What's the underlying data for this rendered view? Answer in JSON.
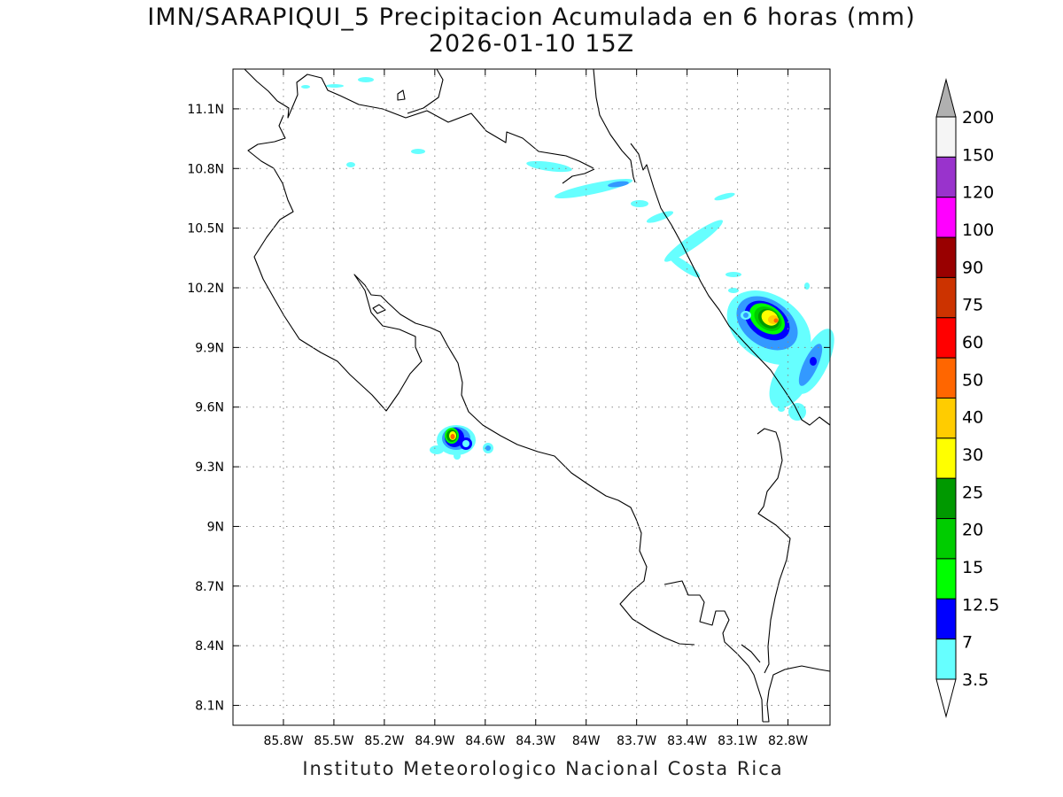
{
  "title": {
    "line1": "IMN/SARAPIQUI_5 Precipitacion Acumulada en 6 horas (mm)",
    "line2": "2026-01-10 15Z"
  },
  "footer": "Instituto Meteorologico Nacional Costa Rica",
  "map": {
    "lon_range": [
      -86.1,
      -82.55
    ],
    "lat_range": [
      8.0,
      11.3
    ],
    "lon_ticks": [
      {
        "value": -85.8,
        "label": "85.8W"
      },
      {
        "value": -85.5,
        "label": "85.5W"
      },
      {
        "value": -85.2,
        "label": "85.2W"
      },
      {
        "value": -84.9,
        "label": "84.9W"
      },
      {
        "value": -84.6,
        "label": "84.6W"
      },
      {
        "value": -84.3,
        "label": "84.3W"
      },
      {
        "value": -84.0,
        "label": "84W"
      },
      {
        "value": -83.7,
        "label": "83.7W"
      },
      {
        "value": -83.4,
        "label": "83.4W"
      },
      {
        "value": -83.1,
        "label": "83.1W"
      },
      {
        "value": -82.8,
        "label": "82.8W"
      }
    ],
    "lat_ticks": [
      {
        "value": 8.1,
        "label": "8.1N"
      },
      {
        "value": 8.4,
        "label": "8.4N"
      },
      {
        "value": 8.7,
        "label": "8.7N"
      },
      {
        "value": 9.0,
        "label": "9N"
      },
      {
        "value": 9.3,
        "label": "9.3N"
      },
      {
        "value": 9.6,
        "label": "9.6N"
      },
      {
        "value": 9.9,
        "label": "9.9N"
      },
      {
        "value": 10.2,
        "label": "10.2N"
      },
      {
        "value": 10.5,
        "label": "10.5N"
      },
      {
        "value": 10.8,
        "label": "10.8N"
      },
      {
        "value": 11.1,
        "label": "11.1N"
      }
    ],
    "grid": "dotted"
  },
  "colorbar": {
    "levels": [
      "3.5",
      "7",
      "12.5",
      "15",
      "20",
      "25",
      "30",
      "40",
      "50",
      "60",
      "75",
      "90",
      "100",
      "120",
      "150",
      "200"
    ],
    "colors": [
      "#66ffff",
      "#3399ff",
      "#0000ff",
      "#00ff00",
      "#00cc00",
      "#009900",
      "#ffff00",
      "#ffcc00",
      "#ff6600",
      "#ff0000",
      "#cc3300",
      "#990000",
      "#ff00ff",
      "#9933cc",
      "#f5f5f5",
      "#b0b0b0"
    ]
  }
}
